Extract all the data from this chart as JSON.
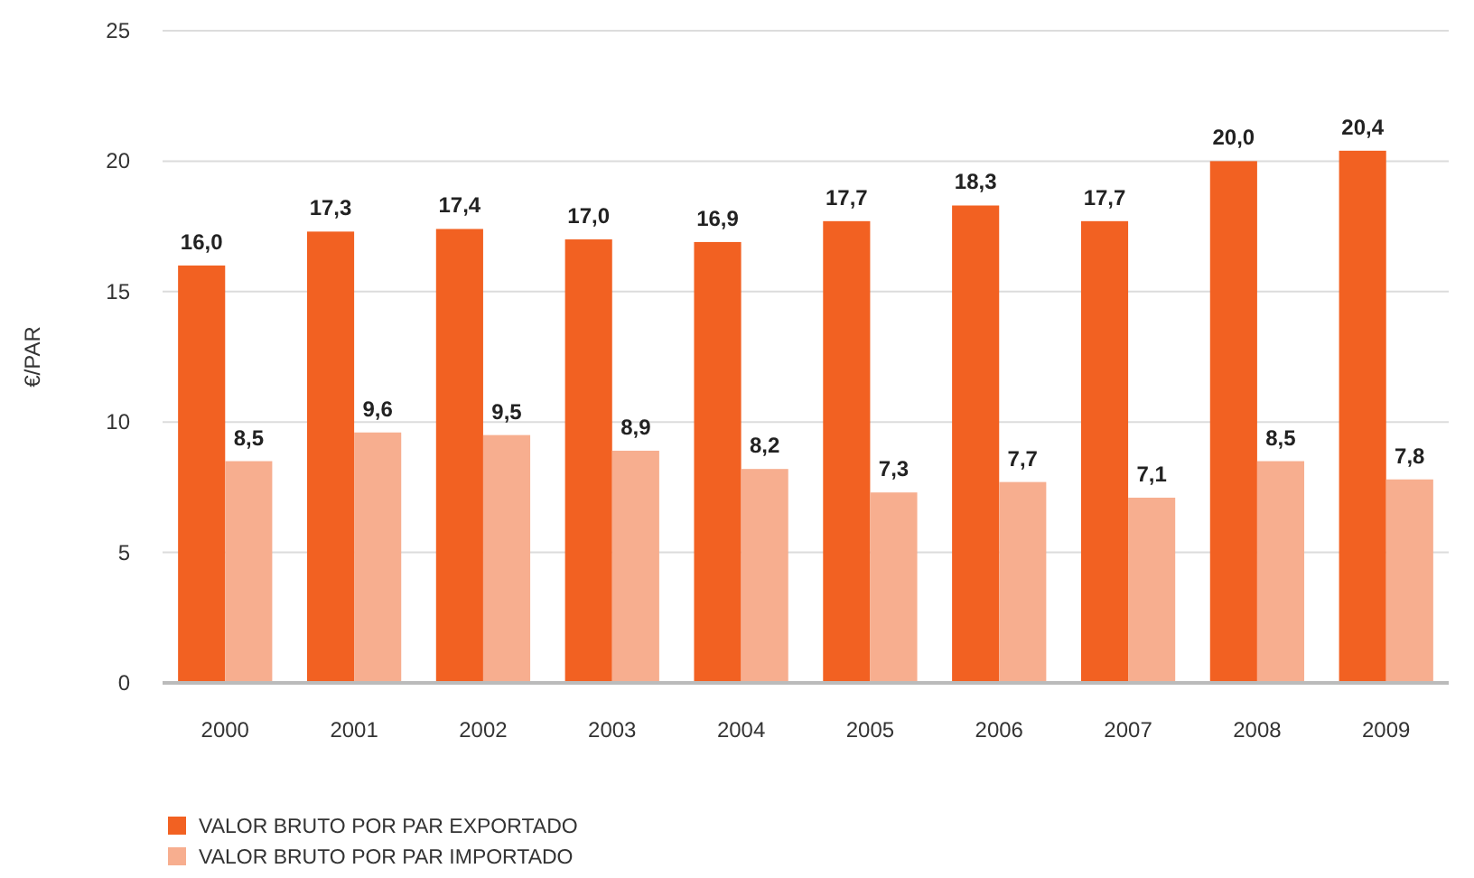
{
  "chart_data": {
    "type": "bar",
    "ylabel": "€/PAR",
    "categories": [
      "2000",
      "2001",
      "2002",
      "2003",
      "2004",
      "2005",
      "2006",
      "2007",
      "2008",
      "2009"
    ],
    "series": [
      {
        "name": "VALOR BRUTO POR PAR EXPORTADO",
        "color": "#f26122",
        "values": [
          16.0,
          17.3,
          17.4,
          17.0,
          16.9,
          17.7,
          18.3,
          17.7,
          20.0,
          20.4
        ],
        "value_labels": [
          "16,0",
          "17,3",
          "17,4",
          "17,0",
          "16,9",
          "17,7",
          "18,3",
          "17,7",
          "20,0",
          "20,4"
        ]
      },
      {
        "name": "VALOR BRUTO POR PAR IMPORTADO",
        "color": "#f7ae8f",
        "values": [
          8.5,
          9.6,
          9.5,
          8.9,
          8.2,
          7.3,
          7.7,
          7.1,
          8.5,
          7.8
        ],
        "value_labels": [
          "8,5",
          "9,6",
          "9,5",
          "8,9",
          "8,2",
          "7,3",
          "7,7",
          "7,1",
          "8,5",
          "7,8"
        ]
      }
    ],
    "ylim": [
      0,
      25
    ],
    "yticks": [
      0,
      5,
      10,
      15,
      20,
      25
    ],
    "grid": "y",
    "legend": "bottom left"
  }
}
